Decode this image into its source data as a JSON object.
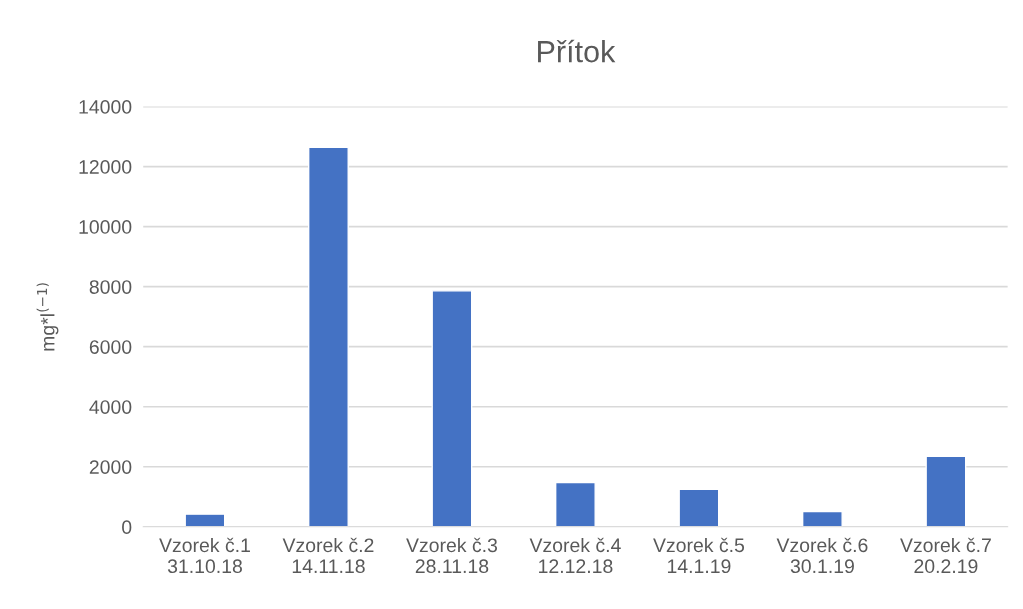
{
  "chart_data": {
    "type": "bar",
    "title": "Přítok",
    "ylabel": "mg*l$^{(−1)}$",
    "categories": [
      "Vzorek č.1\n31.10.18",
      "Vzorek č.2\n14.11.18",
      "Vzorek č.3\n28.11.18",
      "Vzorek č.4\n12.12.18",
      "Vzorek č.5\n14.1.19",
      "Vzorek č.6\n30.1.19",
      "Vzorek č.7\n20.2.19"
    ],
    "values": [
      420,
      12640,
      7860,
      1470,
      1250,
      505,
      2350
    ],
    "color": "#4472c4",
    "ylim": [
      0,
      14000
    ],
    "yticks": [
      0,
      2000,
      4000,
      6000,
      8000,
      10000,
      12000,
      14000
    ],
    "grid": "y",
    "legend": false
  }
}
